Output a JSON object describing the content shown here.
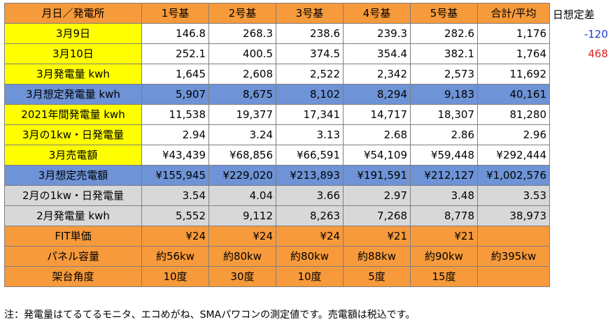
{
  "header": [
    "月日／発電所",
    "1号基",
    "2号基",
    "3号基",
    "4号基",
    "5号基",
    "合計/平均"
  ],
  "rows": [
    {
      "label": "3月9日",
      "values": [
        "146.8",
        "268.3",
        "238.6",
        "239.3",
        "282.6",
        "1,176"
      ]
    },
    {
      "label": "3月10日",
      "values": [
        "252.1",
        "400.5",
        "374.5",
        "354.4",
        "382.1",
        "1,764"
      ]
    },
    {
      "label": "3月発電量 kwh",
      "values": [
        "1,645",
        "2,608",
        "2,522",
        "2,342",
        "2,573",
        "11,692"
      ]
    },
    {
      "label": "3月想定発電量 kwh",
      "values": [
        "5,907",
        "8,675",
        "8,102",
        "8,294",
        "9,183",
        "40,161"
      ]
    },
    {
      "label": "2021年間発電量 kwh",
      "values": [
        "11,538",
        "19,377",
        "17,341",
        "14,717",
        "18,307",
        "81,280"
      ]
    },
    {
      "label": "3月の1kw・日発電量",
      "values": [
        "2.94",
        "3.24",
        "3.13",
        "2.68",
        "2.86",
        "2.96"
      ]
    },
    {
      "label": "3月売電額",
      "values": [
        "¥43,439",
        "¥68,856",
        "¥66,591",
        "¥54,109",
        "¥59,448",
        "¥292,444"
      ]
    },
    {
      "label": "3月想定売電額",
      "values": [
        "¥155,945",
        "¥229,020",
        "¥213,893",
        "¥191,591",
        "¥212,127",
        "¥1,002,576"
      ]
    },
    {
      "label": "2月の1kw・日発電量",
      "values": [
        "3.54",
        "4.04",
        "3.66",
        "2.97",
        "3.48",
        "3.53"
      ]
    },
    {
      "label": "2月発電量 kwh",
      "values": [
        "5,552",
        "9,112",
        "8,263",
        "7,268",
        "8,778",
        "38,973"
      ]
    },
    {
      "label": "FIT単価",
      "values": [
        "¥24",
        "¥24",
        "¥24",
        "¥21",
        "¥21",
        ""
      ]
    },
    {
      "label": "パネル容量",
      "values": [
        "約56kw",
        "約80kw",
        "約80kw",
        "約88kw",
        "約90kw",
        "約395kw"
      ]
    },
    {
      "label": "架台角度",
      "values": [
        "10度",
        "30度",
        "10度",
        "5度",
        "15度",
        ""
      ]
    }
  ],
  "side": {
    "title": "日想定差",
    "v1": "-120",
    "v2": "468"
  },
  "note": "注：発電量はてるてるモニタ、エコめがね、SMAパワコンの測定値です。売電額は税込です。",
  "colors": {
    "orange": "#f79a3b",
    "yellow": "#ffff00",
    "blue": "#6e93d6",
    "gray": "#d8d8d8",
    "neg": "#1a3ccd",
    "pos": "#e02020"
  }
}
